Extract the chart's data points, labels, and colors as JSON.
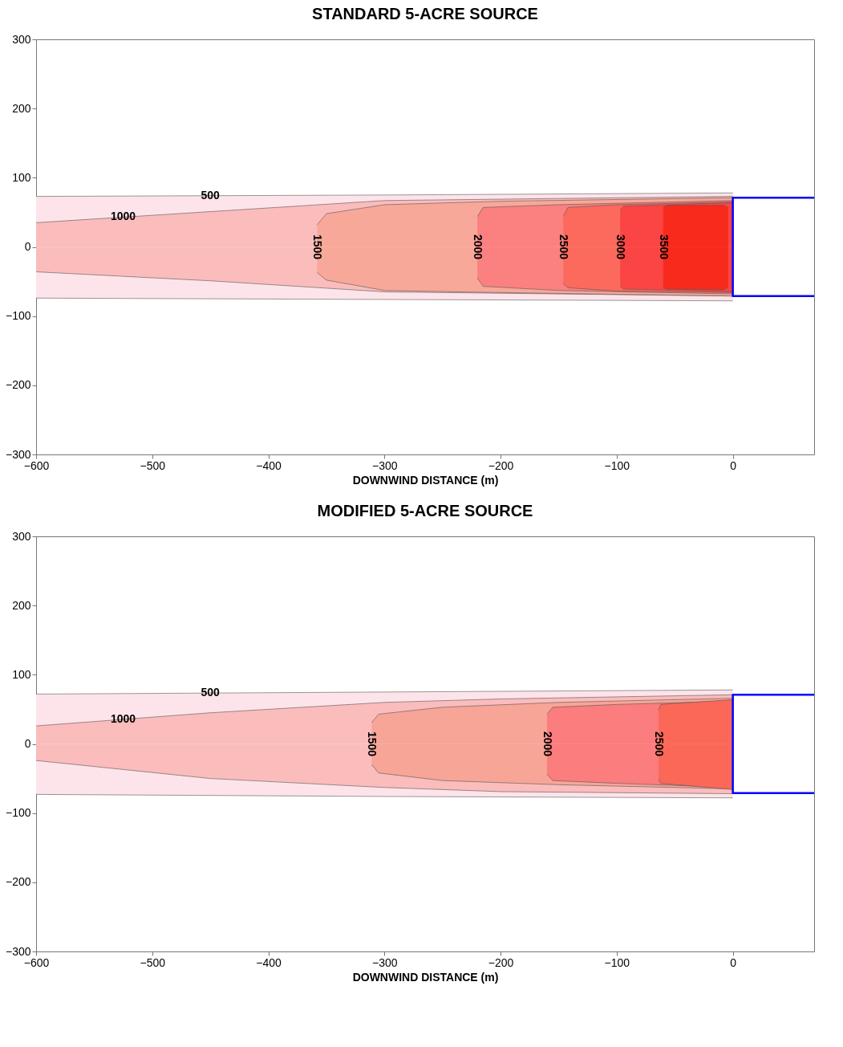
{
  "chart_data": [
    {
      "type": "area",
      "title": "STANDARD 5-ACRE SOURCE",
      "xlabel": "DOWNWIND DISTANCE (m)",
      "xlim": [
        -600,
        70
      ],
      "xticks": [
        -600,
        -500,
        -400,
        -300,
        -200,
        -100,
        0
      ],
      "ylim": [
        -300,
        300
      ],
      "yticks": [
        -300,
        -200,
        -100,
        0,
        100,
        200,
        300
      ],
      "series": [
        {
          "name": "500",
          "color": "#fde4ea",
          "x": [
            -600,
            -300,
            0
          ],
          "values": [
            73,
            75,
            78
          ]
        },
        {
          "color": "#fde4ea",
          "x": [
            -600,
            -300,
            0
          ],
          "values": [
            -74,
            -76,
            -78
          ]
        },
        {
          "name": "1000",
          "color": "#fbbcbc",
          "x": [
            -600,
            -450,
            -300,
            -200,
            0
          ],
          "values": [
            35,
            51,
            67,
            69,
            73
          ]
        },
        {
          "color": "#fbbcbc",
          "x": [
            -600,
            -450,
            -300,
            -200,
            0
          ],
          "values": [
            -36,
            -49,
            -65,
            -67,
            -71
          ]
        },
        {
          "name": "1500",
          "color": "#f8a898",
          "x": [
            -358,
            -350,
            -300,
            -200,
            0
          ],
          "values": [
            32,
            48,
            61,
            66,
            71
          ]
        },
        {
          "color": "#f8a898",
          "x": [
            -358,
            -350,
            -300,
            -200,
            0
          ],
          "values": [
            -37,
            -48,
            -63,
            -66,
            -71
          ]
        },
        {
          "name": "2000",
          "color": "#fb8080",
          "x": [
            -220,
            -215,
            -150,
            0
          ],
          "values": [
            44,
            57,
            61,
            67
          ]
        },
        {
          "color": "#fb8080",
          "x": [
            -220,
            -215,
            -150,
            0
          ],
          "values": [
            -45,
            -57,
            -63,
            -68
          ]
        },
        {
          "name": "2500",
          "color": "#fb6a5c",
          "x": [
            -146,
            -142,
            -100,
            0
          ],
          "values": [
            44,
            57,
            61,
            65
          ]
        },
        {
          "color": "#fb6a5c",
          "x": [
            -146,
            -142,
            -100,
            0
          ],
          "values": [
            -53,
            -59,
            -64,
            -66
          ]
        },
        {
          "name": "3000",
          "color": "#fb4444",
          "x": [
            -97,
            -94,
            0
          ],
          "values": [
            53,
            59,
            64
          ]
        },
        {
          "color": "#fb4444",
          "x": [
            -97,
            -94,
            0
          ],
          "values": [
            -57,
            -61,
            -65
          ]
        },
        {
          "name": "3500",
          "color": "#f82a1c",
          "x": [
            -60,
            -57,
            -8,
            -4
          ],
          "values": [
            57,
            60,
            60,
            57
          ]
        },
        {
          "color": "#f82a1c",
          "x": [
            -60,
            -57,
            -8,
            -4
          ],
          "values": [
            -59,
            -61,
            -62,
            -58
          ]
        },
        {
          "type": "line",
          "color": "#0000ff",
          "x": [
            70,
            0,
            0,
            70
          ],
          "values": [
            71,
            71,
            -71,
            -71
          ]
        }
      ]
    },
    {
      "type": "area",
      "title": "MODIFIED 5-ACRE SOURCE",
      "xlabel": "DOWNWIND DISTANCE (m)",
      "xlim": [
        -600,
        70
      ],
      "xticks": [
        -600,
        -500,
        -400,
        -300,
        -200,
        -100,
        0
      ],
      "ylim": [
        -300,
        300
      ],
      "yticks": [
        -300,
        -200,
        -100,
        0,
        100,
        200,
        300
      ],
      "series": [
        {
          "name": "500",
          "color": "#fde4ea",
          "x": [
            -600,
            -300,
            0
          ],
          "values": [
            72,
            75,
            78
          ]
        },
        {
          "color": "#fde4ea",
          "x": [
            -600,
            -300,
            0
          ],
          "values": [
            -73,
            -76,
            -78
          ]
        },
        {
          "name": "1000",
          "color": "#fbbcbc",
          "x": [
            -600,
            -450,
            -300,
            -200,
            0
          ],
          "values": [
            26,
            45,
            60,
            65,
            71
          ]
        },
        {
          "color": "#fbbcbc",
          "x": [
            -600,
            -450,
            -300,
            -200,
            0
          ],
          "values": [
            -24,
            -50,
            -63,
            -69,
            -72
          ]
        },
        {
          "name": "1500",
          "color": "#f7a597",
          "x": [
            -311,
            -305,
            -250,
            -150,
            0
          ],
          "values": [
            31,
            43,
            53,
            60,
            66
          ]
        },
        {
          "color": "#f7a597",
          "x": [
            -311,
            -305,
            -250,
            -150,
            0
          ],
          "values": [
            -30,
            -42,
            -53,
            -59,
            -65
          ]
        },
        {
          "name": "2000",
          "color": "#fb7d7d",
          "x": [
            -160,
            -155,
            -100,
            0
          ],
          "values": [
            43,
            53,
            57,
            62
          ]
        },
        {
          "color": "#fb7d7d",
          "x": [
            -160,
            -155,
            -100,
            0
          ],
          "values": [
            -44,
            -53,
            -57,
            -63
          ]
        },
        {
          "name": "2500",
          "color": "#fc6858",
          "x": [
            -64,
            -62,
            0
          ],
          "values": [
            49,
            57,
            64
          ]
        },
        {
          "color": "#fc6858",
          "x": [
            -64,
            -62,
            0
          ],
          "values": [
            -51,
            -57,
            -66
          ]
        },
        {
          "type": "line",
          "color": "#0000ff",
          "x": [
            70,
            0,
            0,
            70
          ],
          "values": [
            71,
            71,
            -71,
            -71
          ]
        }
      ]
    }
  ]
}
